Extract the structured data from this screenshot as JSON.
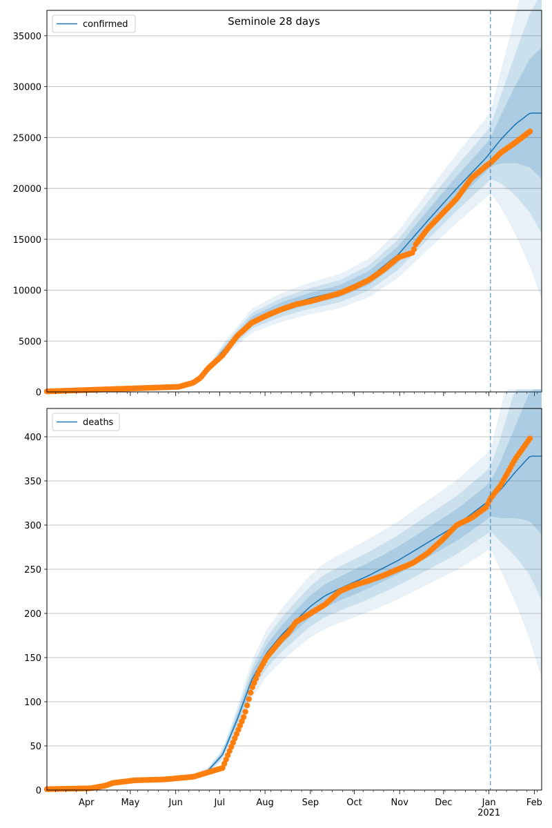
{
  "figure": {
    "title": "Seminole 28 days"
  },
  "chart_data": [
    {
      "type": "line",
      "legend": "top-left",
      "grid": "y",
      "series": [
        {
          "name": "confirmed",
          "color": "#1f77b4",
          "x": [
            0,
            30,
            60,
            90,
            105,
            120,
            140,
            160,
            180,
            200,
            220,
            240,
            260,
            280,
            300,
            310,
            320,
            330
          ],
          "values": [
            50,
            200,
            400,
            600,
            1300,
            4000,
            7000,
            8300,
            9200,
            9900,
            11200,
            13500,
            16800,
            20000,
            23000,
            24800,
            26300,
            27400
          ]
        }
      ],
      "observed": {
        "color": "#ff7f0e",
        "x": [
          0,
          30,
          60,
          90,
          100,
          105,
          110,
          120,
          130,
          140,
          150,
          160,
          170,
          180,
          190,
          200,
          210,
          220,
          230,
          240,
          250,
          252,
          260,
          270,
          280,
          290,
          300,
          303,
          310,
          320,
          330
        ],
        "values": [
          50,
          200,
          350,
          500,
          900,
          1400,
          2300,
          3600,
          5500,
          6800,
          7500,
          8100,
          8600,
          8900,
          9300,
          9700,
          10300,
          11000,
          12000,
          13200,
          13700,
          14500,
          16000,
          17500,
          19000,
          21000,
          22200,
          22500,
          23500,
          24500,
          25600
        ]
      },
      "forecast_start_x": 303,
      "ylim": [
        0,
        37500
      ],
      "yticks": [
        0,
        5000,
        10000,
        15000,
        20000,
        25000,
        30000,
        35000
      ]
    },
    {
      "type": "line",
      "legend": "top-left",
      "grid": "y",
      "series": [
        {
          "name": "deaths",
          "color": "#1f77b4",
          "x": [
            0,
            30,
            45,
            60,
            80,
            100,
            110,
            120,
            130,
            140,
            150,
            160,
            170,
            180,
            190,
            200,
            220,
            240,
            260,
            280,
            300,
            310,
            320,
            330
          ],
          "values": [
            1,
            3,
            6,
            10,
            12,
            15,
            22,
            40,
            80,
            125,
            155,
            175,
            192,
            208,
            220,
            228,
            243,
            260,
            280,
            300,
            325,
            340,
            360,
            378
          ]
        }
      ],
      "observed": {
        "color": "#ff7f0e",
        "x": [
          0,
          30,
          40,
          45,
          60,
          80,
          100,
          110,
          120,
          125,
          130,
          135,
          140,
          145,
          150,
          155,
          160,
          165,
          170,
          180,
          190,
          200,
          210,
          220,
          230,
          240,
          250,
          260,
          270,
          280,
          290,
          300,
          303,
          310,
          315,
          320,
          330
        ],
        "values": [
          1,
          2,
          5,
          8,
          11,
          12,
          15,
          20,
          25,
          45,
          65,
          85,
          115,
          135,
          150,
          160,
          170,
          178,
          190,
          200,
          210,
          225,
          232,
          237,
          243,
          250,
          257,
          268,
          283,
          300,
          308,
          320,
          330,
          345,
          360,
          375,
          398
        ]
      },
      "forecast_start_x": 303,
      "ylim": [
        0,
        432
      ],
      "yticks": [
        0,
        50,
        100,
        150,
        200,
        250,
        300,
        350,
        400
      ]
    }
  ],
  "xaxis": {
    "ticks": [
      {
        "x": 27,
        "label": "Apr"
      },
      {
        "x": 57,
        "label": "May"
      },
      {
        "x": 88,
        "label": "Jun"
      },
      {
        "x": 118,
        "label": "Jul"
      },
      {
        "x": 149,
        "label": "Aug"
      },
      {
        "x": 180,
        "label": "Sep"
      },
      {
        "x": 210,
        "label": "Oct"
      },
      {
        "x": 241,
        "label": "Nov"
      },
      {
        "x": 271,
        "label": "Dec"
      },
      {
        "x": 302,
        "label": "Jan"
      },
      {
        "x": 333,
        "label": "Feb"
      }
    ],
    "year_label": {
      "x": 302,
      "label": "2021"
    },
    "range": [
      0,
      338
    ]
  }
}
